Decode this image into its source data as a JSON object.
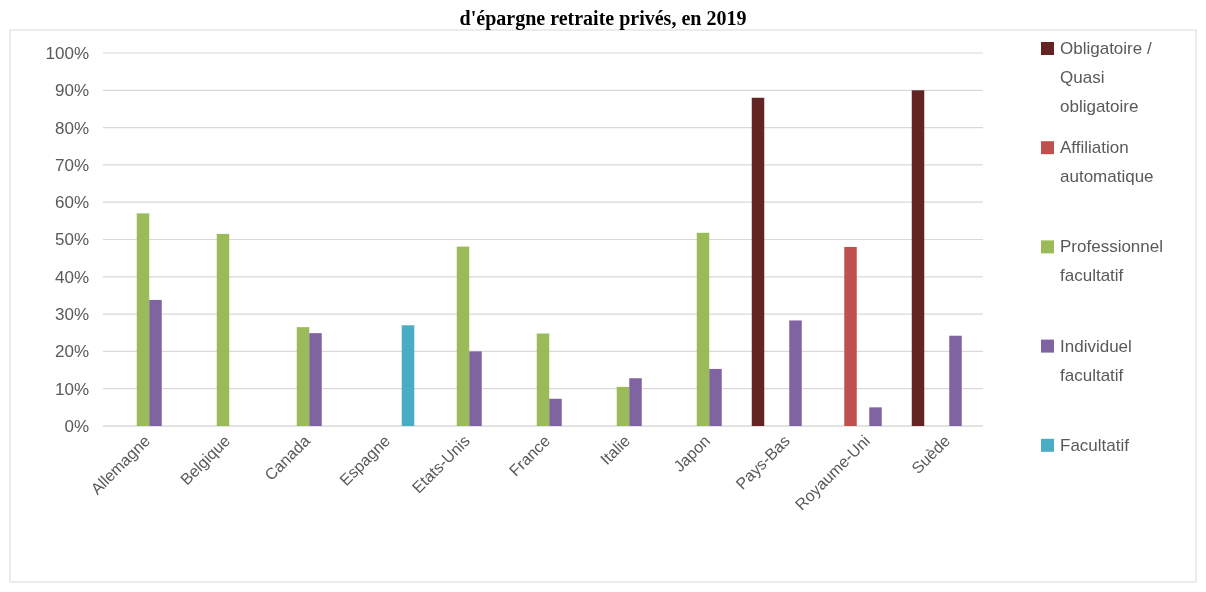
{
  "chart_data": {
    "type": "bar",
    "title": "d'épargne retraite privés, en 2019",
    "categories": [
      "Allemagne",
      "Belgique",
      "Canada",
      "Espagne",
      "Etats-Unis",
      "France",
      "Italie",
      "Japon",
      "Pays-Bas",
      "Royaume-Uni",
      "Suède"
    ],
    "series": [
      {
        "name": "Obligatoire / Quasi obligatoire",
        "color": "#632523",
        "values": [
          null,
          null,
          null,
          null,
          null,
          null,
          null,
          null,
          88,
          null,
          90
        ]
      },
      {
        "name": "Affiliation automatique",
        "color": "#c0504d",
        "values": [
          null,
          null,
          null,
          null,
          null,
          null,
          null,
          null,
          null,
          48,
          null
        ]
      },
      {
        "name": "Professionnel facultatif",
        "color": "#9bbb59",
        "values": [
          57,
          51.5,
          26.5,
          null,
          48.1,
          24.8,
          10.5,
          51.8,
          null,
          null,
          null
        ]
      },
      {
        "name": "Individuel facultatif",
        "color": "#8064a2",
        "values": [
          33.8,
          null,
          24.9,
          null,
          20,
          7.3,
          12.8,
          15.3,
          28.3,
          5,
          24.2
        ]
      },
      {
        "name": "Facultatif",
        "color": "#4bacc6",
        "values": [
          null,
          null,
          null,
          27,
          null,
          null,
          null,
          null,
          null,
          null,
          null
        ]
      }
    ],
    "ylim": [
      0,
      100
    ],
    "yticks": [
      {
        "value": 0,
        "label": "0%"
      },
      {
        "value": 10,
        "label": "10%"
      },
      {
        "value": 20,
        "label": "20%"
      },
      {
        "value": 30,
        "label": "30%"
      },
      {
        "value": 40,
        "label": "40%"
      },
      {
        "value": 50,
        "label": "50%"
      },
      {
        "value": 60,
        "label": "60%"
      },
      {
        "value": 70,
        "label": "70%"
      },
      {
        "value": 80,
        "label": "80%"
      },
      {
        "value": 90,
        "label": "90%"
      },
      {
        "value": 100,
        "label": "100%"
      }
    ],
    "grid": "y",
    "legend": "right"
  }
}
